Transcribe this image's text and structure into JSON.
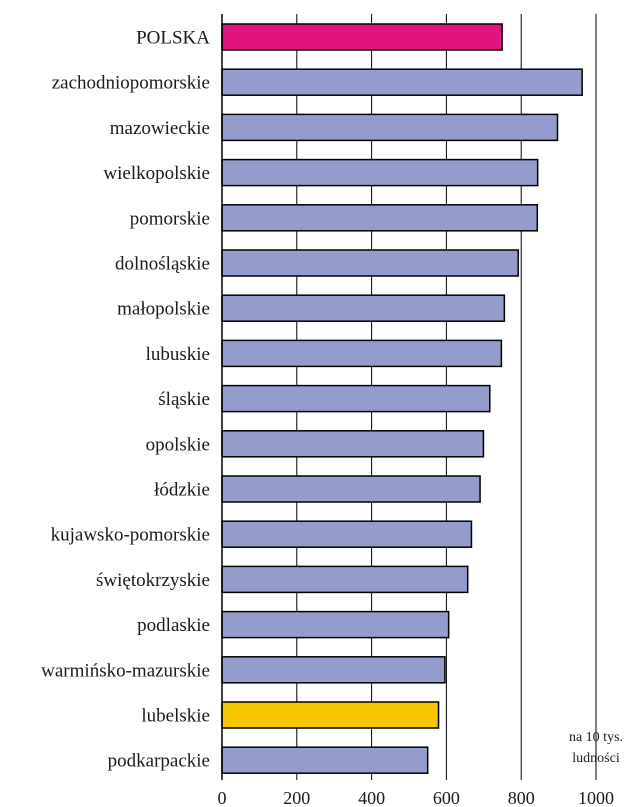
{
  "chart_data": {
    "type": "bar",
    "orientation": "horizontal",
    "categories": [
      "POLSKA",
      "zachodniopomorskie",
      "mazowieckie",
      "wielkopolskie",
      "pomorskie",
      "dolnośląskie",
      "małopolskie",
      "lubuskie",
      "śląskie",
      "opolskie",
      "łódzkie",
      "kujawsko-pomorskie",
      "świętokrzyskie",
      "podlaskie",
      "warmińsko-mazurskie",
      "lubelskie",
      "podkarpackie"
    ],
    "values": [
      749,
      963,
      897,
      844,
      843,
      792,
      755,
      747,
      716,
      699,
      690,
      667,
      657,
      606,
      596,
      579,
      550
    ],
    "bar_colors": [
      "#e0147a",
      "#949ccd",
      "#949ccd",
      "#949ccd",
      "#949ccd",
      "#949ccd",
      "#949ccd",
      "#949ccd",
      "#949ccd",
      "#949ccd",
      "#949ccd",
      "#949ccd",
      "#949ccd",
      "#949ccd",
      "#949ccd",
      "#f7c600",
      "#949ccd"
    ],
    "xlim": [
      0,
      1000
    ],
    "xticks": [
      "0",
      "200",
      "400",
      "600",
      "800",
      "1000"
    ],
    "unit_label": [
      "na 10 tys.",
      "ludności"
    ],
    "grid": "vertical"
  }
}
